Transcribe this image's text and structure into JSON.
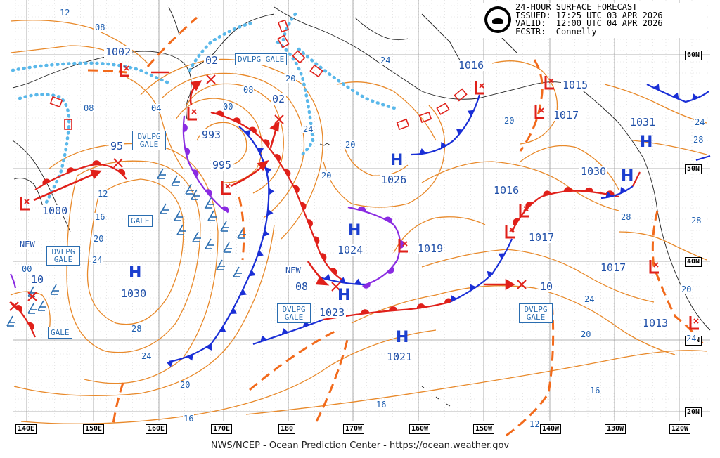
{
  "header": {
    "line1": "24-HOUR SURFACE FORECAST",
    "line2": "ISSUED: 17:25 UTC 03 APR 2026",
    "line3": "VALID:  12:00 UTC 04 APR 2026",
    "line4": "FCSTR:  Connelly",
    "logo_icon": "noaa-logo-icon"
  },
  "footer": "NWS/NCEP - Ocean Prediction Center - https://ocean.weather.gov",
  "longitude_labels": [
    "140E",
    "150E",
    "160E",
    "170E",
    "180",
    "170W",
    "160W",
    "150W",
    "140W",
    "130W",
    "120W"
  ],
  "latitude_labels": [
    "60N",
    "50N",
    "40N",
    "30N",
    "20N"
  ],
  "pressure_centers": [
    {
      "kind": "L",
      "label": "1002"
    },
    {
      "kind": "L",
      "label": "02"
    },
    {
      "kind": "L",
      "label": "02"
    },
    {
      "kind": "L",
      "label": "993"
    },
    {
      "kind": "L",
      "label": "995"
    },
    {
      "kind": "L",
      "label": "95"
    },
    {
      "kind": "L",
      "label": "1000"
    },
    {
      "kind": "L",
      "label": "10"
    },
    {
      "kind": "H",
      "label": "1030"
    },
    {
      "kind": "H",
      "label": "1024"
    },
    {
      "kind": "L",
      "label": "1019"
    },
    {
      "kind": "L",
      "label": "08"
    },
    {
      "kind": "H",
      "label": "1023"
    },
    {
      "kind": "H",
      "label": "1026"
    },
    {
      "kind": "L",
      "label": "1016"
    },
    {
      "kind": "L",
      "label": "1015"
    },
    {
      "kind": "L",
      "label": "1017"
    },
    {
      "kind": "H",
      "label": "1031"
    },
    {
      "kind": "H",
      "label": "1030"
    },
    {
      "kind": "L",
      "label": "1016"
    },
    {
      "kind": "L",
      "label": "1017"
    },
    {
      "kind": "L",
      "label": "1017"
    },
    {
      "kind": "L",
      "label": "10"
    },
    {
      "kind": "H",
      "label": "1021"
    },
    {
      "kind": "L",
      "label": "1013"
    }
  ],
  "isobar_labels": [
    "12",
    "08",
    "08",
    "04",
    "00",
    "08",
    "12",
    "16",
    "20",
    "24",
    "00",
    "28",
    "24",
    "20",
    "16",
    "20",
    "24",
    "20",
    "16",
    "20",
    "24",
    "28",
    "24",
    "20",
    "16",
    "12",
    "20",
    "24",
    "28",
    "28",
    "20",
    "24"
  ],
  "warning_boxes": [
    "DVLPG GALE",
    "DVLPG GALE",
    "GALE",
    "DVLPG GALE",
    "GALE",
    "DVLPG GALE",
    "DVLPG GALE"
  ],
  "notes": [
    "NEW",
    "NEW"
  ],
  "colors": {
    "isobar": "#e8892a",
    "cold_front": "#1a2fd6",
    "warm_front": "#e0201a",
    "occluded_front": "#8a2be2",
    "trough": "#f26a1b",
    "ice_edge": "#5ab8ea",
    "low_symbol": "#e0201a",
    "high_symbol": "#1c3fcf",
    "text": "#1f4fa8"
  }
}
